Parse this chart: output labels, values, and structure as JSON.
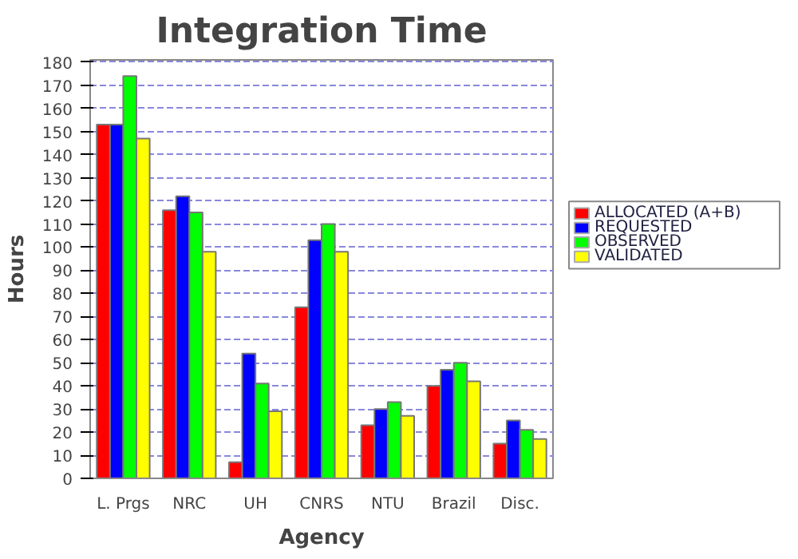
{
  "chart_data": {
    "type": "bar",
    "title": "Integration Time",
    "xlabel": "Agency",
    "ylabel": "Hours",
    "categories": [
      "L. Prgs",
      "NRC",
      "UH",
      "CNRS",
      "NTU",
      "Brazil",
      "Disc."
    ],
    "series": [
      {
        "name": "ALLOCATED (A+B)",
        "color": "#ff0000",
        "values": [
          153,
          116,
          7,
          74,
          23,
          40,
          15
        ]
      },
      {
        "name": "REQUESTED",
        "color": "#0000ff",
        "values": [
          153,
          122,
          54,
          103,
          30,
          47,
          25
        ]
      },
      {
        "name": "OBSERVED",
        "color": "#00ff00",
        "values": [
          174,
          115,
          41,
          110,
          33,
          50,
          21
        ]
      },
      {
        "name": "VALIDATED",
        "color": "#ffff00",
        "values": [
          147,
          98,
          29,
          98,
          27,
          42,
          17
        ]
      }
    ],
    "ylim": [
      0,
      181
    ],
    "yticks": [
      0,
      10,
      20,
      30,
      40,
      50,
      60,
      70,
      80,
      90,
      100,
      110,
      120,
      130,
      140,
      150,
      160,
      170,
      180
    ],
    "grid": "y",
    "legend": "right"
  }
}
